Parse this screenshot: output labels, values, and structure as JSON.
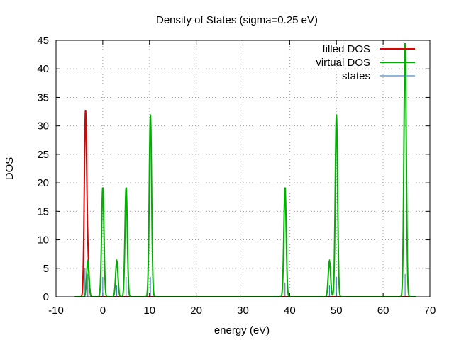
{
  "chart_data": {
    "type": "line",
    "title": "Density of States (sigma=0.25 eV)",
    "xlabel": "energy (eV)",
    "ylabel": "DOS",
    "xlim": [
      -10,
      70
    ],
    "ylim": [
      0,
      45
    ],
    "xticks": [
      -10,
      0,
      10,
      20,
      30,
      40,
      50,
      60,
      70
    ],
    "yticks": [
      0,
      5,
      10,
      15,
      20,
      25,
      30,
      35,
      40,
      45
    ],
    "grid": true,
    "legend": "top-right",
    "series": [
      {
        "name": "filled DOS",
        "color": "#e00000",
        "peaks": [
          {
            "x": -3.7,
            "height": 32,
            "width": 0.25
          },
          {
            "x": -3.2,
            "height": 6,
            "width": 0.25
          }
        ]
      },
      {
        "name": "virtual DOS",
        "color": "#00b000",
        "peaks": [
          {
            "x": -3.2,
            "height": 6.3,
            "width": 0.25
          },
          {
            "x": 0,
            "height": 19.2,
            "width": 0.25
          },
          {
            "x": 3,
            "height": 6.3,
            "width": 0.25
          },
          {
            "x": 5,
            "height": 19.2,
            "width": 0.25
          },
          {
            "x": 10.2,
            "height": 32,
            "width": 0.25
          },
          {
            "x": 39,
            "height": 19.2,
            "width": 0.25
          },
          {
            "x": 48.5,
            "height": 6.3,
            "width": 0.25
          },
          {
            "x": 50,
            "height": 32,
            "width": 0.25
          },
          {
            "x": 64.7,
            "height": 44.5,
            "width": 0.25
          }
        ]
      },
      {
        "name": "states",
        "color": "#1f6fb5",
        "sticks": [
          {
            "x": -3.8,
            "height": 5
          },
          {
            "x": -3.2,
            "height": 4
          },
          {
            "x": 0,
            "height": 3.5
          },
          {
            "x": 3,
            "height": 2
          },
          {
            "x": 5,
            "height": 3.5
          },
          {
            "x": 10.2,
            "height": 3.5
          },
          {
            "x": 39,
            "height": 2.5
          },
          {
            "x": 48.5,
            "height": 2
          },
          {
            "x": 50,
            "height": 3.5
          },
          {
            "x": 64.7,
            "height": 4
          }
        ]
      }
    ]
  }
}
